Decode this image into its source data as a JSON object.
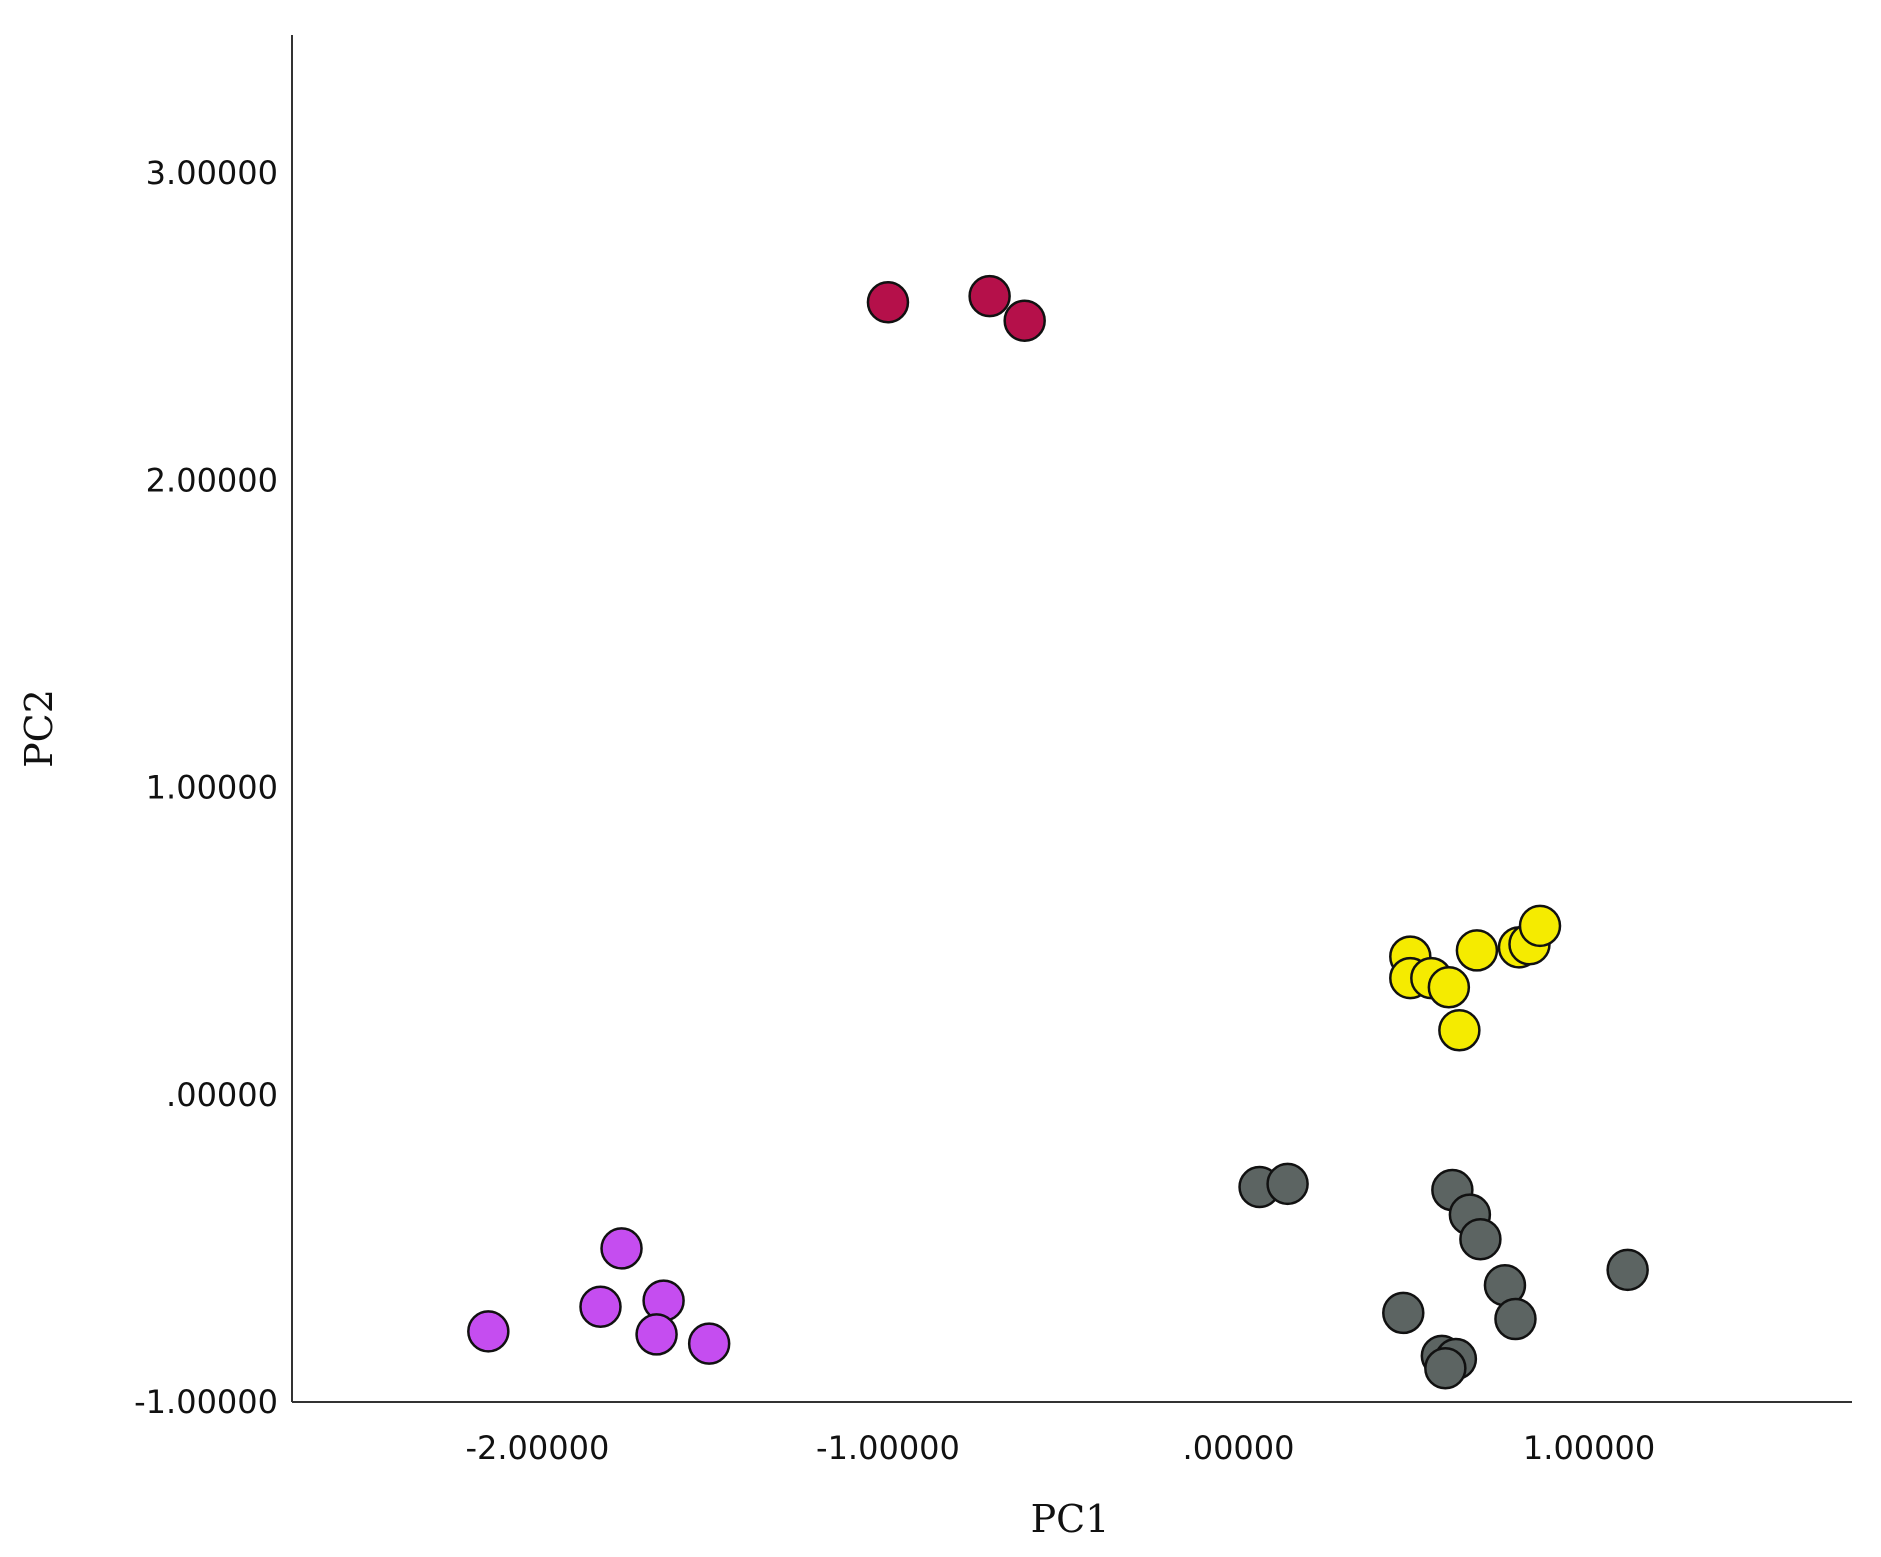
{
  "chart_data": {
    "type": "scatter",
    "xlabel": "PC1",
    "ylabel": "PC2",
    "xlim": [
      -2.7,
      1.75
    ],
    "ylim": [
      -1.0,
      3.45
    ],
    "x_ticks": [
      {
        "value": -2,
        "label": "-2.00000"
      },
      {
        "value": -1,
        "label": "-1.00000"
      },
      {
        "value": 0,
        "label": ".00000"
      },
      {
        "value": 1,
        "label": "1.00000"
      }
    ],
    "y_ticks": [
      {
        "value": -1,
        "label": "-1.00000"
      },
      {
        "value": 0,
        "label": ".00000"
      },
      {
        "value": 1,
        "label": "1.00000"
      },
      {
        "value": 2,
        "label": "2.00000"
      },
      {
        "value": 3,
        "label": "3.00000"
      }
    ],
    "grid": false,
    "legend": "none",
    "series": [
      {
        "color": "#b5104a",
        "points": [
          [
            -1.0,
            2.58
          ],
          [
            -0.71,
            2.6
          ],
          [
            -0.61,
            2.52
          ]
        ]
      },
      {
        "color": "#c54df0",
        "points": [
          [
            -2.14,
            -0.77
          ],
          [
            -1.82,
            -0.69
          ],
          [
            -1.76,
            -0.5
          ],
          [
            -1.64,
            -0.67
          ],
          [
            -1.66,
            -0.78
          ],
          [
            -1.51,
            -0.81
          ]
        ]
      },
      {
        "color": "#f5eb00",
        "points": [
          [
            0.49,
            0.45
          ],
          [
            0.49,
            0.38
          ],
          [
            0.55,
            0.38
          ],
          [
            0.6,
            0.35
          ],
          [
            0.63,
            0.21
          ],
          [
            0.68,
            0.47
          ],
          [
            0.8,
            0.48
          ],
          [
            0.83,
            0.49
          ],
          [
            0.86,
            0.55
          ]
        ]
      },
      {
        "color": "#5c6462",
        "points": [
          [
            0.06,
            -0.3
          ],
          [
            0.14,
            -0.29
          ],
          [
            0.61,
            -0.31
          ],
          [
            0.66,
            -0.39
          ],
          [
            0.69,
            -0.47
          ],
          [
            0.47,
            -0.71
          ],
          [
            0.76,
            -0.62
          ],
          [
            0.79,
            -0.73
          ],
          [
            1.11,
            -0.57
          ],
          [
            0.58,
            -0.85
          ],
          [
            0.62,
            -0.86
          ],
          [
            0.59,
            -0.89
          ]
        ]
      }
    ]
  }
}
